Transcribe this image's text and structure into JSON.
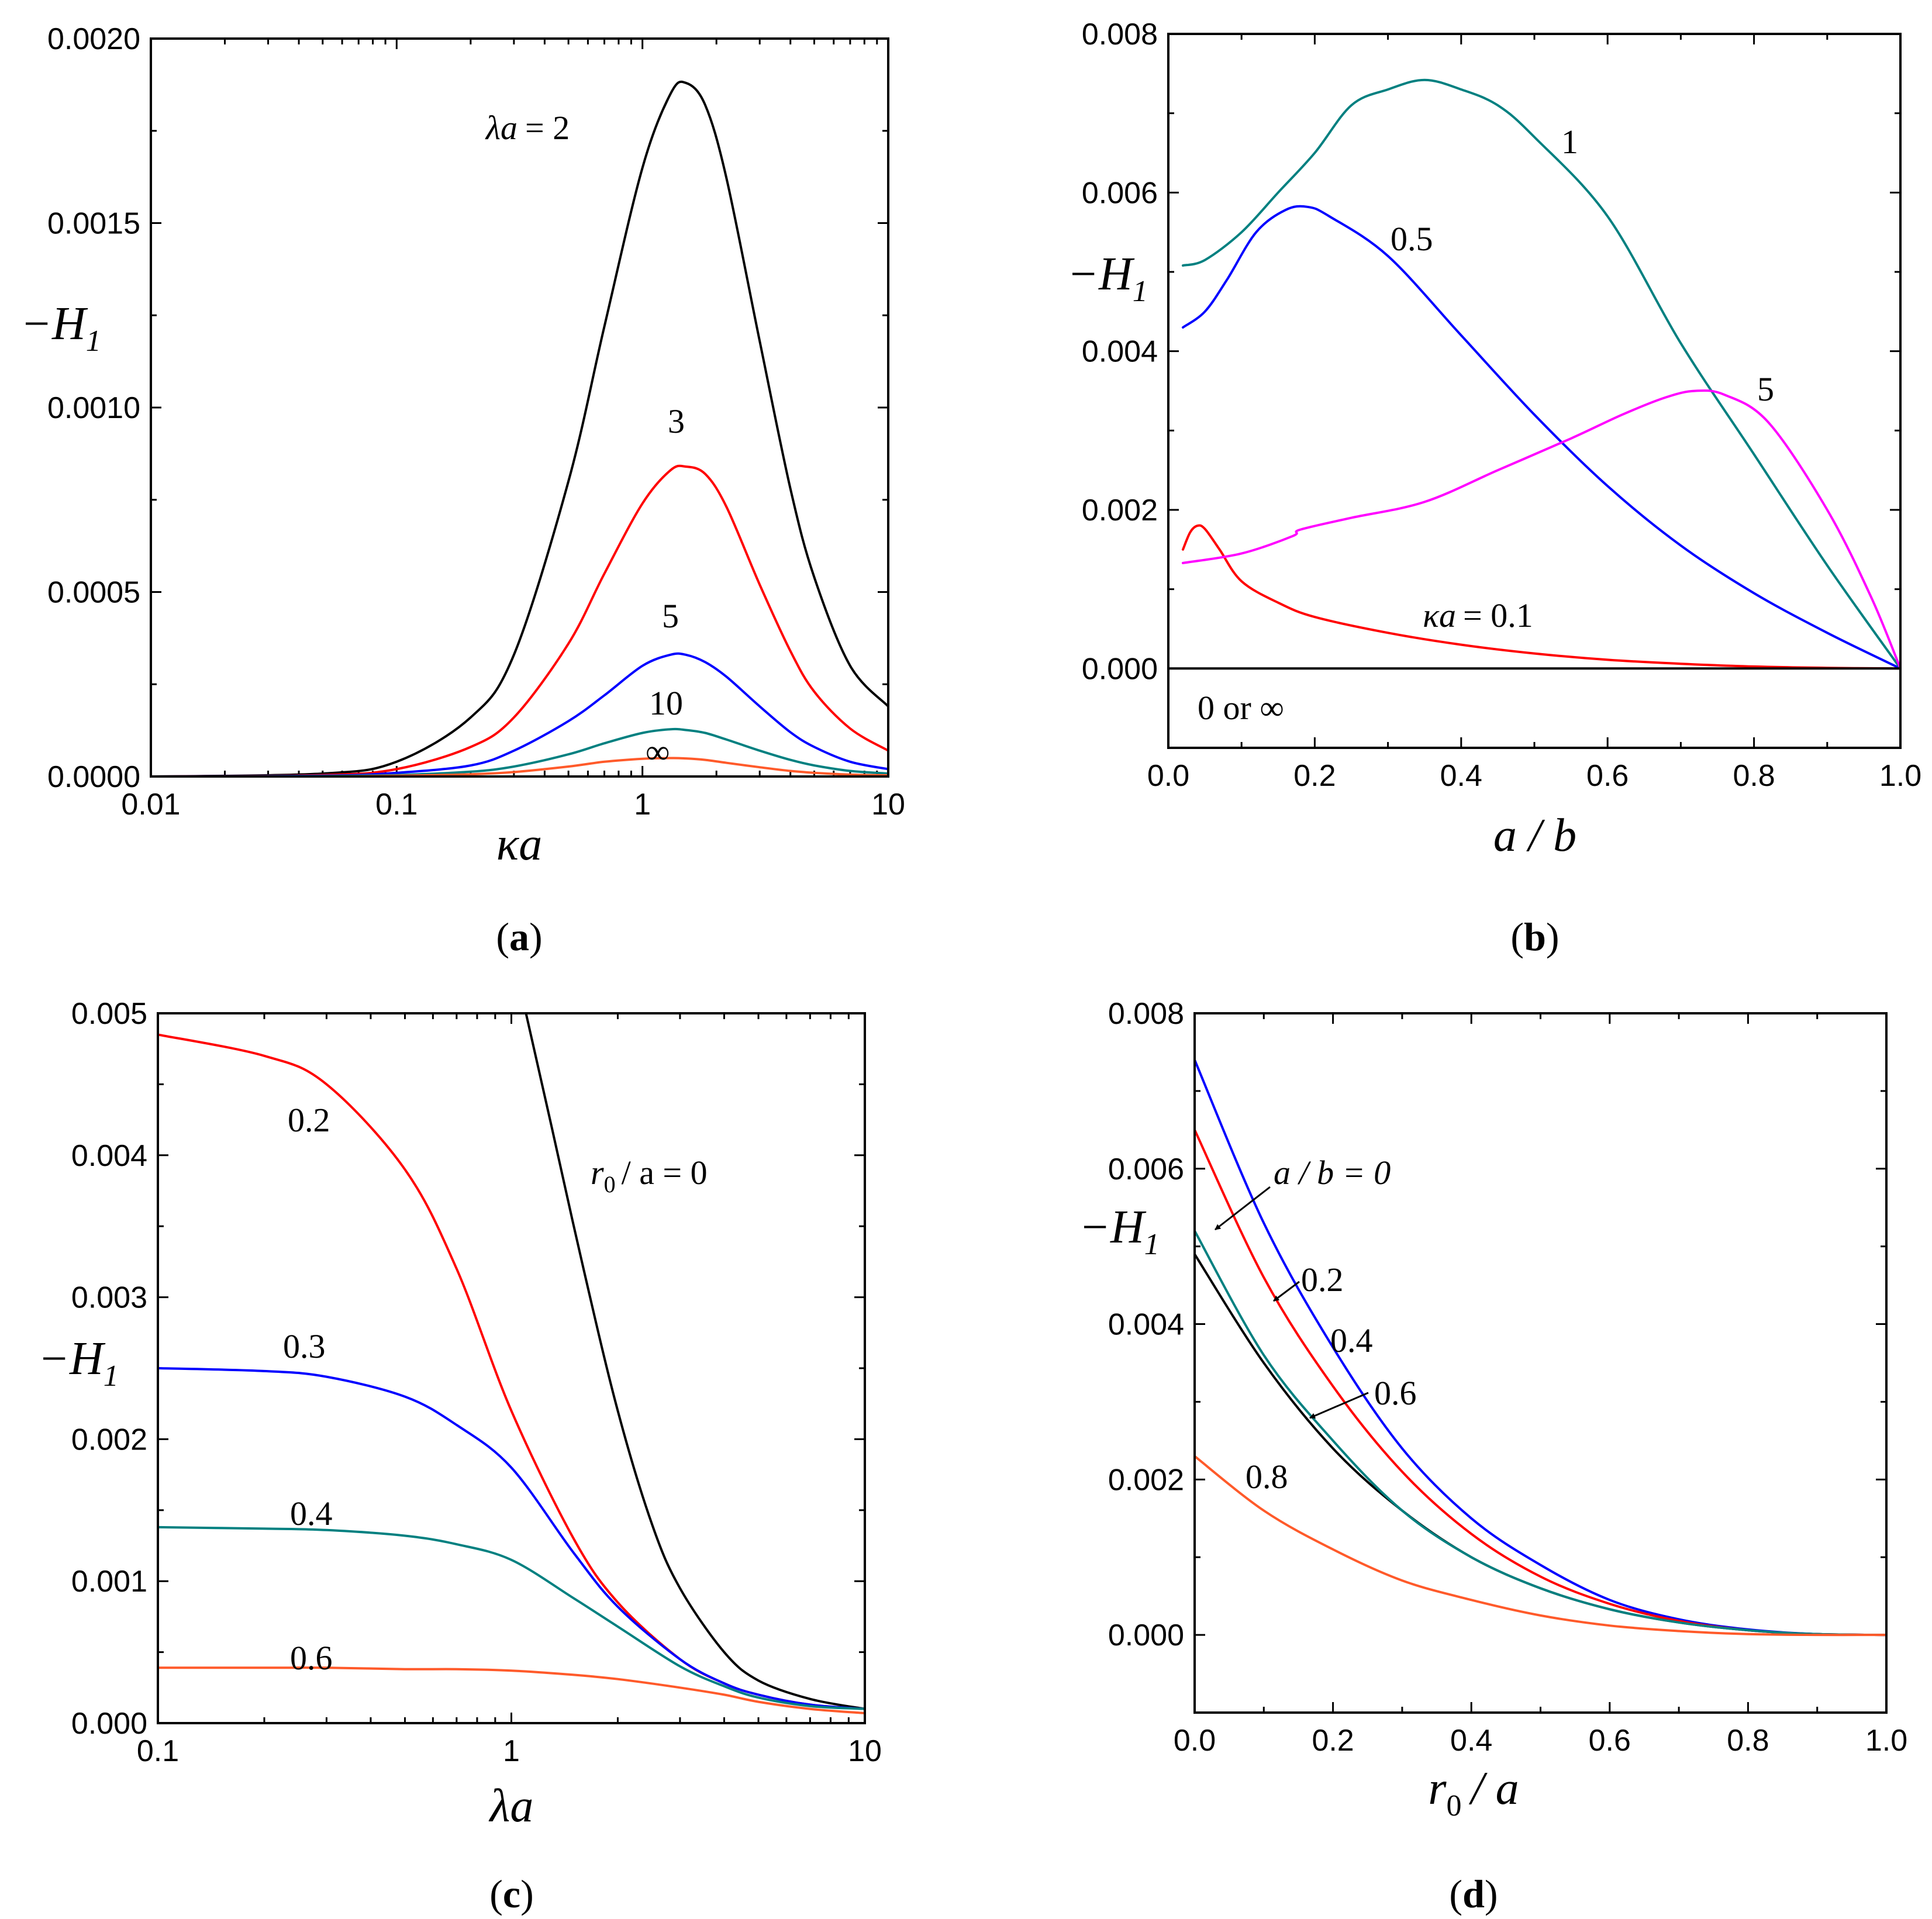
{
  "chart_data": [
    {
      "panel": "(a)",
      "type": "line",
      "xscale": "log",
      "xlim": [
        0.01,
        10
      ],
      "ylim": [
        0,
        0.002
      ],
      "xticks": [
        "0.01",
        "0.1",
        "1",
        "10"
      ],
      "yticks": [
        "0.0000",
        "0.0005",
        "0.0010",
        "0.0015",
        "0.0020"
      ],
      "xlabel": "κa",
      "ylabel": "−H1",
      "series": [
        {
          "name": "λa = 2",
          "color": "#000000",
          "x": [
            0.01,
            0.05,
            0.1,
            0.2,
            0.3,
            0.5,
            0.7,
            1,
            1.3,
            1.5,
            1.8,
            2.2,
            3,
            4,
            5,
            7,
            10
          ],
          "y": [
            0,
            8e-06,
            4e-05,
            0.00016,
            0.00033,
            0.0008,
            0.00122,
            0.00165,
            0.00185,
            0.00188,
            0.00182,
            0.00162,
            0.00118,
            0.00078,
            0.00054,
            0.0003,
            0.00019
          ]
        },
        {
          "name": "3",
          "color": "#ff0000",
          "x": [
            0.01,
            0.05,
            0.1,
            0.2,
            0.3,
            0.5,
            0.7,
            1,
            1.3,
            1.5,
            1.8,
            2.2,
            3,
            4,
            5,
            7,
            10
          ],
          "y": [
            0,
            4e-06,
            2e-05,
            8e-05,
            0.00016,
            0.00036,
            0.00055,
            0.00074,
            0.00083,
            0.00084,
            0.00082,
            0.00073,
            0.00052,
            0.00034,
            0.00023,
            0.00013,
            7e-05
          ]
        },
        {
          "name": "5",
          "color": "#0000ff",
          "x": [
            0.01,
            0.05,
            0.1,
            0.2,
            0.3,
            0.5,
            0.7,
            1,
            1.3,
            1.5,
            1.8,
            2.2,
            3,
            4,
            5,
            7,
            10
          ],
          "y": [
            0,
            2e-06,
            1e-05,
            3e-05,
            7e-05,
            0.00015,
            0.00022,
            0.0003,
            0.00033,
            0.00033,
            0.00031,
            0.00027,
            0.00019,
            0.00012,
            8e-05,
            4e-05,
            2e-05
          ]
        },
        {
          "name": "10",
          "color": "#008080",
          "x": [
            0.01,
            0.05,
            0.1,
            0.2,
            0.3,
            0.5,
            0.7,
            1,
            1.3,
            1.5,
            1.8,
            2.2,
            3,
            4,
            5,
            7,
            10
          ],
          "y": [
            0,
            1e-06,
            4e-06,
            1.3e-05,
            2.7e-05,
            6e-05,
            9e-05,
            0.000118,
            0.000128,
            0.000126,
            0.000118,
            0.0001,
            7e-05,
            4.5e-05,
            3e-05,
            1.5e-05,
            8e-06
          ]
        },
        {
          "name": "∞",
          "color": "#ff5a2a",
          "x": [
            0.01,
            0.05,
            0.1,
            0.2,
            0.3,
            0.5,
            0.7,
            1,
            1.3,
            1.5,
            1.8,
            2.2,
            3,
            4,
            5,
            7,
            10
          ],
          "y": [
            0,
            0,
            2e-06,
            6e-06,
            1.2e-05,
            2.7e-05,
            4e-05,
            4.8e-05,
            5e-05,
            4.9e-05,
            4.5e-05,
            3.7e-05,
            2.5e-05,
            1.5e-05,
            1e-05,
            5e-06,
            3e-06
          ]
        }
      ],
      "annotations": [
        "λa = 2",
        "3",
        "5",
        "10",
        "∞"
      ]
    },
    {
      "panel": "(b)",
      "type": "line",
      "xlim": [
        0,
        1
      ],
      "ylim": [
        -0.001,
        0.008
      ],
      "xticks": [
        "0.0",
        "0.2",
        "0.4",
        "0.6",
        "0.8",
        "1.0"
      ],
      "yticks": [
        "0.000",
        "0.002",
        "0.004",
        "0.006",
        "0.008"
      ],
      "xlabel": "a / b",
      "ylabel": "−H1",
      "series": [
        {
          "name": "κa = 0.1",
          "color": "#ff0000",
          "x": [
            0.02,
            0.03,
            0.04,
            0.05,
            0.07,
            0.1,
            0.15,
            0.2,
            0.3,
            0.4,
            0.5,
            0.6,
            0.7,
            0.8,
            0.9,
            1.0
          ],
          "y": [
            0.0015,
            0.00172,
            0.0018,
            0.00176,
            0.0015,
            0.0011,
            0.00083,
            0.00065,
            0.00045,
            0.0003,
            0.00019,
            0.00011,
            6e-05,
            2.5e-05,
            8e-06,
            0
          ]
        },
        {
          "name": "0.5",
          "color": "#0000ff",
          "x": [
            0.02,
            0.05,
            0.08,
            0.12,
            0.16,
            0.19,
            0.22,
            0.3,
            0.4,
            0.5,
            0.6,
            0.7,
            0.8,
            0.9,
            1.0
          ],
          "y": [
            0.0043,
            0.0045,
            0.0049,
            0.0055,
            0.00578,
            0.00582,
            0.0057,
            0.0052,
            0.0042,
            0.0032,
            0.0023,
            0.00155,
            0.00095,
            0.00045,
            0
          ]
        },
        {
          "name": "1",
          "color": "#008080",
          "x": [
            0.02,
            0.05,
            0.1,
            0.15,
            0.2,
            0.25,
            0.3,
            0.35,
            0.4,
            0.45,
            0.5,
            0.6,
            0.7,
            0.8,
            0.9,
            1.0
          ],
          "y": [
            0.00508,
            0.00515,
            0.0055,
            0.006,
            0.0065,
            0.0071,
            0.0073,
            0.00742,
            0.0073,
            0.0071,
            0.0067,
            0.0057,
            0.0041,
            0.0027,
            0.0013,
            0
          ]
        },
        {
          "name": "5",
          "color": "#ff00ff",
          "x": [
            0.02,
            0.1,
            0.17,
            0.18,
            0.25,
            0.35,
            0.45,
            0.55,
            0.62,
            0.68,
            0.72,
            0.76,
            0.82,
            0.9,
            0.96,
            1.0
          ],
          "y": [
            0.00133,
            0.00145,
            0.00167,
            0.00175,
            0.0019,
            0.0021,
            0.0025,
            0.0029,
            0.0032,
            0.00342,
            0.0035,
            0.00345,
            0.0031,
            0.002,
            0.0009,
            0
          ]
        },
        {
          "name": "0 or ∞",
          "color": "#000000",
          "x": [
            0,
            1.0
          ],
          "y": [
            0,
            0
          ]
        }
      ],
      "annotations": [
        "1",
        "0.5",
        "5",
        "κa = 0.1",
        "0 or ∞"
      ]
    },
    {
      "panel": "(c)",
      "type": "line",
      "xscale": "log",
      "xlim": [
        0.1,
        10
      ],
      "ylim": [
        0,
        0.005
      ],
      "xticks": [
        "0.1",
        "1",
        "10"
      ],
      "yticks": [
        "0.000",
        "0.001",
        "0.002",
        "0.003",
        "0.004",
        "0.005"
      ],
      "xlabel": "λa",
      "ylabel": "−H1",
      "series": [
        {
          "name": "r0 / a = 0",
          "color": "#000000",
          "x": [
            1.1,
            1.3,
            1.6,
            2,
            2.5,
            3,
            4,
            5,
            7,
            10
          ],
          "y": [
            0.005,
            0.0042,
            0.0032,
            0.0022,
            0.0014,
            0.00095,
            0.0005,
            0.0003,
            0.00017,
            0.0001
          ]
        },
        {
          "name": "0.2",
          "color": "#ff0000",
          "x": [
            0.1,
            0.2,
            0.3,
            0.5,
            0.7,
            1,
            1.5,
            2,
            3,
            4,
            5,
            7,
            10
          ],
          "y": [
            0.00485,
            0.0047,
            0.0045,
            0.0039,
            0.0032,
            0.0022,
            0.0013,
            0.00085,
            0.00045,
            0.00028,
            0.0002,
            0.00013,
            0.0001
          ]
        },
        {
          "name": "0.3",
          "color": "#0000ff",
          "x": [
            0.1,
            0.2,
            0.3,
            0.5,
            0.7,
            1,
            1.5,
            2,
            3,
            4,
            5,
            7,
            10
          ],
          "y": [
            0.0025,
            0.00248,
            0.00244,
            0.0023,
            0.0021,
            0.0018,
            0.0012,
            0.00082,
            0.00045,
            0.00028,
            0.0002,
            0.00013,
            0.0001
          ]
        },
        {
          "name": "0.4",
          "color": "#008080",
          "x": [
            0.1,
            0.2,
            0.3,
            0.5,
            0.7,
            1,
            1.5,
            2,
            3,
            4,
            5,
            7,
            10
          ],
          "y": [
            0.00138,
            0.00137,
            0.00136,
            0.00132,
            0.00126,
            0.00115,
            0.00088,
            0.00068,
            0.0004,
            0.00026,
            0.00018,
            0.00012,
            0.0001
          ]
        },
        {
          "name": "0.6",
          "color": "#ff5a2a",
          "x": [
            0.1,
            0.2,
            0.3,
            0.5,
            0.7,
            1,
            1.5,
            2,
            3,
            4,
            5,
            7,
            10
          ],
          "y": [
            0.00039,
            0.00039,
            0.00039,
            0.00038,
            0.00038,
            0.00037,
            0.00034,
            0.00031,
            0.00025,
            0.0002,
            0.00015,
            0.0001,
            7e-05
          ]
        }
      ],
      "annotations": [
        "r0 / a = 0",
        "0.2",
        "0.3",
        "0.4",
        "0.6"
      ]
    },
    {
      "panel": "(d)",
      "type": "line",
      "xlim": [
        0,
        1
      ],
      "ylim": [
        -0.001,
        0.008
      ],
      "xticks": [
        "0.0",
        "0.2",
        "0.4",
        "0.6",
        "0.8",
        "1.0"
      ],
      "yticks": [
        "0.000",
        "0.002",
        "0.004",
        "0.006",
        "0.008"
      ],
      "xlabel": "r0 / a",
      "ylabel": "−H1",
      "series": [
        {
          "name": "a / b = 0",
          "color": "#000000",
          "x": [
            0,
            0.1,
            0.2,
            0.3,
            0.4,
            0.5,
            0.6,
            0.7,
            0.8,
            0.9,
            1.0
          ],
          "y": [
            0.0049,
            0.0035,
            0.0024,
            0.0016,
            0.001,
            0.0006,
            0.00033,
            0.00016,
            6e-05,
            1e-05,
            0
          ]
        },
        {
          "name": "0.2",
          "color": "#0000ff",
          "x": [
            0,
            0.1,
            0.2,
            0.3,
            0.4,
            0.5,
            0.6,
            0.7,
            0.8,
            0.9,
            1.0
          ],
          "y": [
            0.0074,
            0.0053,
            0.0037,
            0.0024,
            0.0015,
            0.0009,
            0.00045,
            0.0002,
            7e-05,
            1e-05,
            0
          ]
        },
        {
          "name": "0.4",
          "color": "#ff0000",
          "x": [
            0,
            0.1,
            0.2,
            0.3,
            0.4,
            0.5,
            0.6,
            0.7,
            0.8,
            0.9,
            1.0
          ],
          "y": [
            0.0065,
            0.0046,
            0.0032,
            0.0021,
            0.0013,
            0.00075,
            0.0004,
            0.00018,
            6e-05,
            1e-05,
            0
          ]
        },
        {
          "name": "0.6",
          "color": "#008080",
          "x": [
            0,
            0.1,
            0.2,
            0.3,
            0.4,
            0.5,
            0.6,
            0.7,
            0.8,
            0.9,
            1.0
          ],
          "y": [
            0.0052,
            0.0036,
            0.0025,
            0.0016,
            0.001,
            0.0006,
            0.00033,
            0.00016,
            6e-05,
            1e-05,
            0
          ]
        },
        {
          "name": "0.8",
          "color": "#ff5a2a",
          "x": [
            0,
            0.1,
            0.2,
            0.3,
            0.4,
            0.5,
            0.6,
            0.7,
            0.8,
            0.9,
            1.0
          ],
          "y": [
            0.0023,
            0.0016,
            0.0011,
            0.0007,
            0.00045,
            0.00025,
            0.00012,
            5e-05,
            1e-05,
            0,
            0
          ]
        }
      ],
      "annotations": [
        "a / b = 0",
        "0.2",
        "0.4",
        "0.6",
        "0.8"
      ]
    }
  ],
  "labels": {
    "a": {
      "xlabel": "κa",
      "ylabel_main": "−H",
      "ylabel_sub": "1",
      "ann_2_lhs": "λa",
      "ann_2_rhs": "= 2",
      "ann_3": "3",
      "ann_5": "5",
      "ann_10": "10",
      "ann_inf": "∞",
      "panel_label": "a",
      "paren_open": "(",
      "paren_close": ")"
    },
    "b": {
      "xlabel": "a / b",
      "ylabel_main": "−H",
      "ylabel_sub": "1",
      "ann_1": "1",
      "ann_05": "0.5",
      "ann_5": "5",
      "ann_01_lhs": "κa",
      "ann_01_rhs": "= 0.1",
      "ann_0inf": "0 or ∞",
      "panel_label": "b",
      "paren_open": "(",
      "paren_close": ")"
    },
    "c": {
      "xlabel": "λa",
      "ylabel_main": "−H",
      "ylabel_sub": "1",
      "ann_0_r": "r",
      "ann_0_sub": "0",
      "ann_0_rest": "/ a = 0",
      "ann_02": "0.2",
      "ann_03": "0.3",
      "ann_04": "0.4",
      "ann_06": "0.6",
      "panel_label": "c",
      "paren_open": "(",
      "paren_close": ")"
    },
    "d": {
      "xlabel_r": "r",
      "xlabel_sub": "0",
      "xlabel_rest": "/ a",
      "ylabel_main": "−H",
      "ylabel_sub": "1",
      "ann_ab0": "a / b = 0",
      "ann_02": "0.2",
      "ann_04": "0.4",
      "ann_06": "0.6",
      "ann_08": "0.8",
      "panel_label": "d",
      "paren_open": "(",
      "paren_close": ")"
    }
  }
}
